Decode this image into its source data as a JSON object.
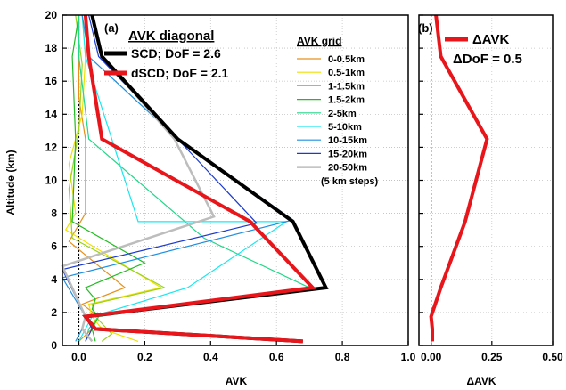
{
  "chart_data": [
    {
      "panel_label": "(a)",
      "type": "line",
      "xlabel": "AVK",
      "ylabel": "Altitude (km)",
      "xlim": [
        -0.05,
        1.0
      ],
      "ylim": [
        0,
        20
      ],
      "xticks": [
        0.0,
        0.2,
        0.4,
        0.6,
        0.8,
        1.0
      ],
      "xtick_labels": [
        "0.0",
        "0.2",
        "0.4",
        "0.6",
        "0.8",
        "1.0"
      ],
      "yticks": [
        0,
        2,
        4,
        6,
        8,
        10,
        12,
        14,
        16,
        18,
        20
      ],
      "grid": true,
      "legend_diag_title": "AVK diagonal",
      "legend_grid_title": "AVK grid",
      "legend_grid_note": "(5 km steps)",
      "series": [
        {
          "name": "SCD; DoF = 2.6",
          "color": "#000000",
          "width": 4,
          "group": "diagonal",
          "x": [
            0.68,
            0.05,
            0.02,
            0.75,
            0.65,
            0.3,
            0.07,
            0.04
          ],
          "y": [
            0.25,
            1.0,
            1.75,
            3.5,
            7.5,
            12.5,
            17.5,
            20.0
          ]
        },
        {
          "name": "dSCD; DoF = 2.1",
          "color": "#e8161b",
          "width": 4,
          "group": "diagonal",
          "x": [
            0.68,
            0.05,
            0.02,
            0.71,
            0.52,
            0.07,
            0.03,
            0.02
          ],
          "y": [
            0.25,
            1.0,
            1.75,
            3.5,
            7.5,
            12.5,
            17.5,
            20.0
          ]
        },
        {
          "name": "0-0.5km",
          "color": "#e8901a",
          "width": 1.2,
          "group": "grid",
          "x": [
            0.0,
            0.04,
            0.06,
            0.01,
            0.14,
            -0.03,
            0.02,
            0.02,
            0.0,
            0.0,
            0.0
          ],
          "y": [
            0.25,
            1.0,
            1.75,
            2.5,
            3.5,
            6.3,
            8.0,
            12.5,
            15.0,
            17.5,
            20.0
          ]
        },
        {
          "name": "0.5-1km",
          "color": "#f0e000",
          "width": 1.2,
          "group": "grid",
          "x": [
            0.18,
            0.07,
            0.04,
            0.03,
            0.25,
            -0.04,
            -0.01,
            -0.03,
            0.01,
            0.02,
            0.01
          ],
          "y": [
            0.25,
            1.0,
            1.75,
            2.5,
            3.5,
            7.0,
            8.0,
            11.0,
            14.0,
            17.5,
            20.0
          ]
        },
        {
          "name": "1-1.5km",
          "color": "#9ad21d",
          "width": 1.2,
          "group": "grid",
          "x": [
            0.07,
            0.1,
            0.05,
            0.04,
            0.26,
            -0.02,
            -0.03,
            0.0,
            0.01,
            -0.01
          ],
          "y": [
            0.25,
            0.7,
            1.75,
            2.5,
            3.5,
            6.5,
            9.5,
            13.0,
            17.0,
            20.0
          ]
        },
        {
          "name": "1.5-2km",
          "color": "#22bb22",
          "width": 1.2,
          "group": "grid",
          "x": [
            0.05,
            0.04,
            0.06,
            0.04,
            0.05,
            0.02,
            0.2,
            -0.02,
            -0.01,
            -0.02,
            0.0
          ],
          "y": [
            0.25,
            1.0,
            1.75,
            2.2,
            2.8,
            3.5,
            5.0,
            7.5,
            12.5,
            17.5,
            20.0
          ]
        },
        {
          "name": "2-5km",
          "color": "#22d78a",
          "width": 1.2,
          "group": "grid",
          "x": [
            0.02,
            0.03,
            0.06,
            0.7,
            0.38,
            0.03,
            0.0,
            0.0
          ],
          "y": [
            0.25,
            1.0,
            1.75,
            3.5,
            6.5,
            12.5,
            17.5,
            20.0
          ]
        },
        {
          "name": "5-10km",
          "color": "#18e8f0",
          "width": 1.2,
          "group": "grid",
          "x": [
            0.0,
            0.02,
            0.04,
            0.33,
            0.63,
            0.18,
            0.1,
            0.02,
            0.01
          ],
          "y": [
            0.25,
            1.0,
            1.75,
            3.5,
            7.5,
            7.5,
            12.5,
            17.5,
            20.0
          ]
        },
        {
          "name": "10-15km",
          "color": "#1e90e0",
          "width": 1.2,
          "group": "grid",
          "x": [
            -0.01,
            0.01,
            0.02,
            -0.05,
            0.65,
            0.3,
            0.03,
            0.01
          ],
          "y": [
            0.25,
            1.0,
            1.75,
            4.1,
            7.6,
            12.5,
            17.5,
            20.0
          ]
        },
        {
          "name": "15-20km",
          "color": "#1a3ad0",
          "width": 1.2,
          "group": "grid",
          "x": [
            0.02,
            0.04,
            0.02,
            -0.05,
            0.54,
            0.3,
            0.06,
            0.03
          ],
          "y": [
            0.25,
            1.0,
            1.75,
            4.6,
            7.4,
            12.5,
            17.5,
            20.0
          ]
        },
        {
          "name": "20-50km",
          "color": "#bdbdbd",
          "width": 2.5,
          "group": "grid",
          "x": [
            0.04,
            0.01,
            0.02,
            -0.05,
            0.41,
            0.29,
            0.07,
            0.04
          ],
          "y": [
            0.25,
            1.0,
            1.75,
            4.8,
            7.8,
            12.5,
            17.5,
            20.0
          ]
        }
      ]
    },
    {
      "panel_label": "(b)",
      "type": "line",
      "xlabel": "ΔAVK",
      "xlim": [
        -0.05,
        0.5
      ],
      "ylim": [
        0,
        20
      ],
      "xticks": [
        0.0,
        0.25,
        0.5
      ],
      "xtick_labels": [
        "0.00",
        "0.25",
        "0.50"
      ],
      "grid": true,
      "legend_text": "ΔDoF = 0.5",
      "series": [
        {
          "name": "ΔAVK",
          "color": "#e8161b",
          "width": 4,
          "x": [
            0.005,
            0.005,
            0.0,
            0.04,
            0.14,
            0.23,
            0.04,
            0.02
          ],
          "y": [
            0.25,
            1.0,
            1.75,
            3.5,
            7.5,
            12.5,
            17.5,
            20.0
          ]
        }
      ]
    }
  ]
}
